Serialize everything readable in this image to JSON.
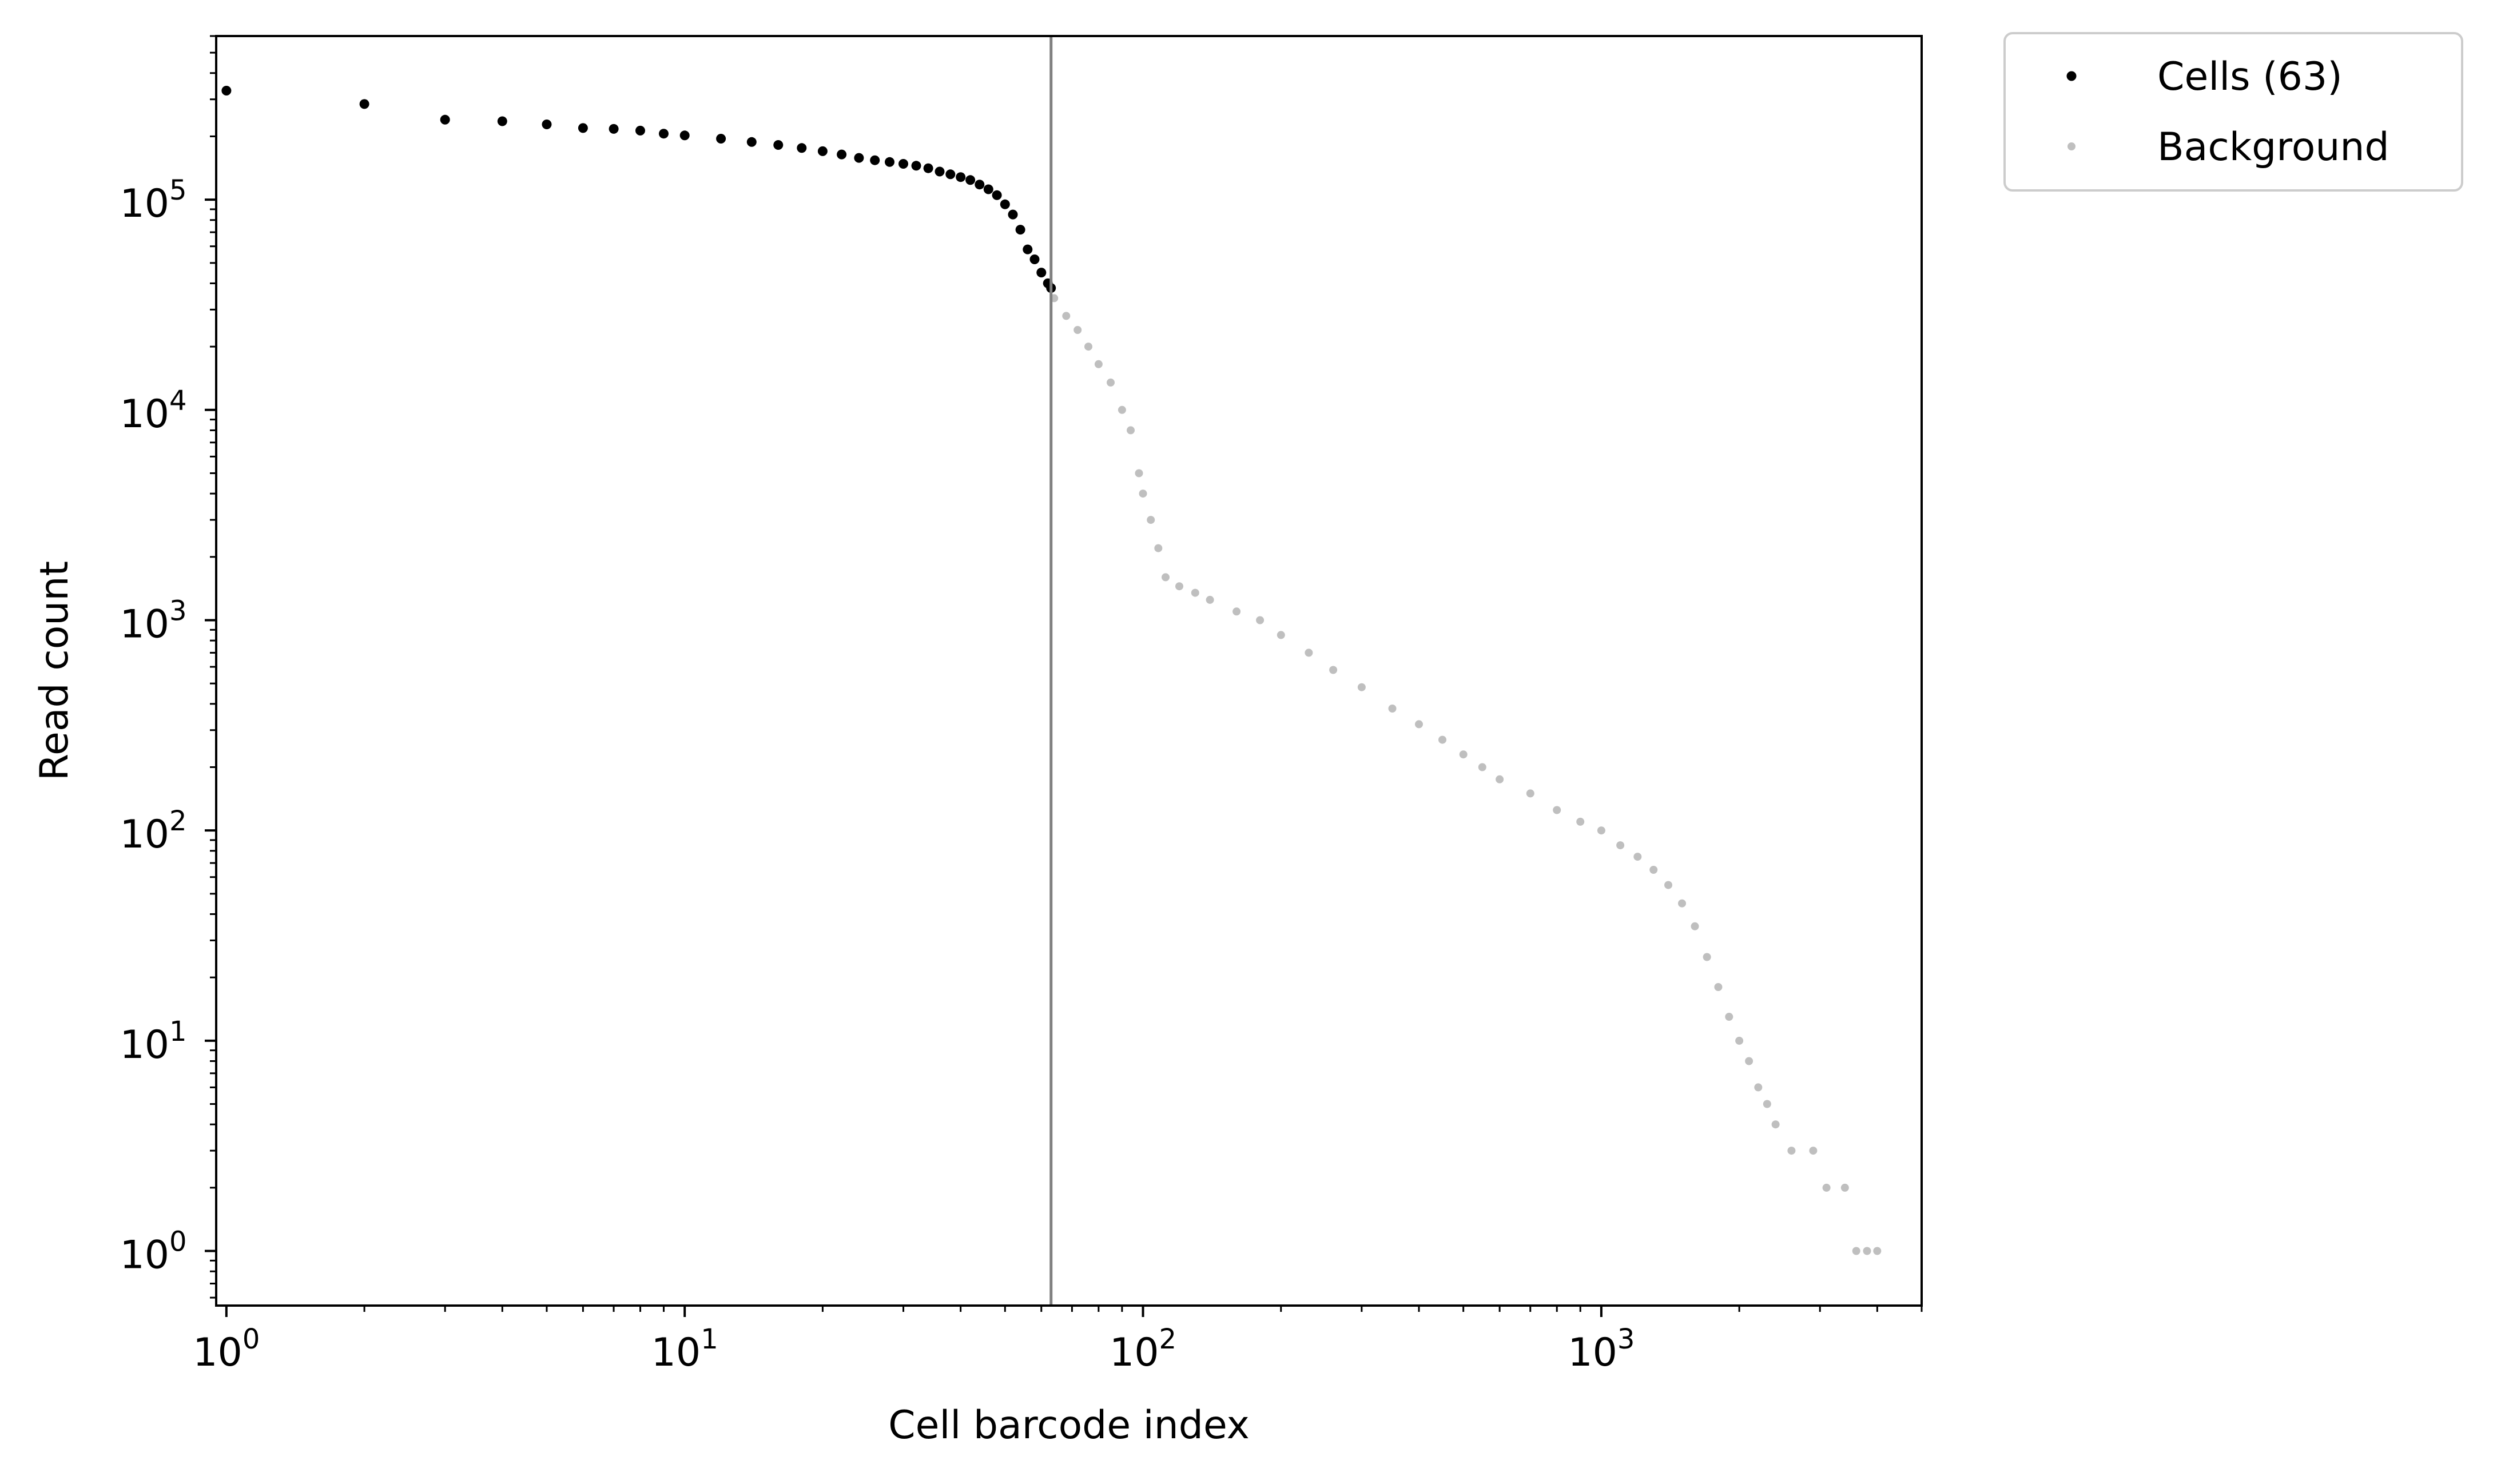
{
  "chart_data": {
    "type": "scatter",
    "title": "",
    "xlabel": "Cell barcode index",
    "ylabel": "Read count",
    "xscale": "log",
    "yscale": "log",
    "xlim": [
      0.95,
      5000
    ],
    "ylim": [
      0.55,
      600000
    ],
    "grid": false,
    "legend_position": "outside-top-right",
    "x_ticks": [
      {
        "base": "10",
        "exp": "0",
        "value": 1
      },
      {
        "base": "10",
        "exp": "1",
        "value": 10
      },
      {
        "base": "10",
        "exp": "2",
        "value": 100
      },
      {
        "base": "10",
        "exp": "3",
        "value": 1000
      }
    ],
    "y_ticks": [
      {
        "base": "10",
        "exp": "0",
        "value": 1
      },
      {
        "base": "10",
        "exp": "1",
        "value": 10
      },
      {
        "base": "10",
        "exp": "2",
        "value": 100
      },
      {
        "base": "10",
        "exp": "3",
        "value": 1000
      },
      {
        "base": "10",
        "exp": "4",
        "value": 10000
      },
      {
        "base": "10",
        "exp": "5",
        "value": 100000
      }
    ],
    "threshold_x": 63,
    "colors": {
      "cells": "#000000",
      "background": "#bfbfbf",
      "threshold_line": "#808080",
      "legend_border": "#cccccc"
    },
    "series": [
      {
        "name": "Cells (63)",
        "color": "#000000",
        "points": [
          [
            1,
            330000
          ],
          [
            2,
            285000
          ],
          [
            3,
            240000
          ],
          [
            4,
            236000
          ],
          [
            5,
            228000
          ],
          [
            6,
            219000
          ],
          [
            7,
            217000
          ],
          [
            8,
            213000
          ],
          [
            9,
            206000
          ],
          [
            10,
            202000
          ],
          [
            12,
            195000
          ],
          [
            14,
            188000
          ],
          [
            16,
            182000
          ],
          [
            18,
            176000
          ],
          [
            20,
            170000
          ],
          [
            22,
            164000
          ],
          [
            24,
            158000
          ],
          [
            26,
            154000
          ],
          [
            28,
            151000
          ],
          [
            30,
            148000
          ],
          [
            32,
            145000
          ],
          [
            34,
            141000
          ],
          [
            36,
            136000
          ],
          [
            38,
            132000
          ],
          [
            40,
            128000
          ],
          [
            42,
            124000
          ],
          [
            44,
            118000
          ],
          [
            46,
            112000
          ],
          [
            48,
            105000
          ],
          [
            50,
            95000
          ],
          [
            52,
            85000
          ],
          [
            54,
            72000
          ],
          [
            56,
            58000
          ],
          [
            58,
            52000
          ],
          [
            60,
            45000
          ],
          [
            62,
            40000
          ],
          [
            63,
            38000
          ]
        ]
      },
      {
        "name": "Background",
        "color": "#bfbfbf",
        "points": [
          [
            64,
            34000
          ],
          [
            68,
            28000
          ],
          [
            72,
            24000
          ],
          [
            76,
            20000
          ],
          [
            80,
            16500
          ],
          [
            85,
            13500
          ],
          [
            90,
            10000
          ],
          [
            94,
            8000
          ],
          [
            98,
            5000
          ],
          [
            100,
            4000
          ],
          [
            104,
            3000
          ],
          [
            108,
            2200
          ],
          [
            112,
            1600
          ],
          [
            120,
            1450
          ],
          [
            130,
            1350
          ],
          [
            140,
            1250
          ],
          [
            160,
            1100
          ],
          [
            180,
            1000
          ],
          [
            200,
            850
          ],
          [
            230,
            700
          ],
          [
            260,
            580
          ],
          [
            300,
            480
          ],
          [
            350,
            380
          ],
          [
            400,
            320
          ],
          [
            450,
            270
          ],
          [
            500,
            230
          ],
          [
            550,
            200
          ],
          [
            600,
            175
          ],
          [
            700,
            150
          ],
          [
            800,
            125
          ],
          [
            900,
            110
          ],
          [
            1000,
            100
          ],
          [
            1100,
            85
          ],
          [
            1200,
            75
          ],
          [
            1300,
            65
          ],
          [
            1400,
            55
          ],
          [
            1500,
            45
          ],
          [
            1600,
            35
          ],
          [
            1700,
            25
          ],
          [
            1800,
            18
          ],
          [
            1900,
            13
          ],
          [
            2000,
            10
          ],
          [
            2100,
            8
          ],
          [
            2200,
            6
          ],
          [
            2300,
            5
          ],
          [
            2400,
            4
          ],
          [
            2600,
            3
          ],
          [
            2900,
            3
          ],
          [
            3100,
            2
          ],
          [
            3400,
            2
          ],
          [
            3600,
            1
          ],
          [
            3800,
            1
          ],
          [
            4000,
            1
          ]
        ]
      }
    ]
  }
}
